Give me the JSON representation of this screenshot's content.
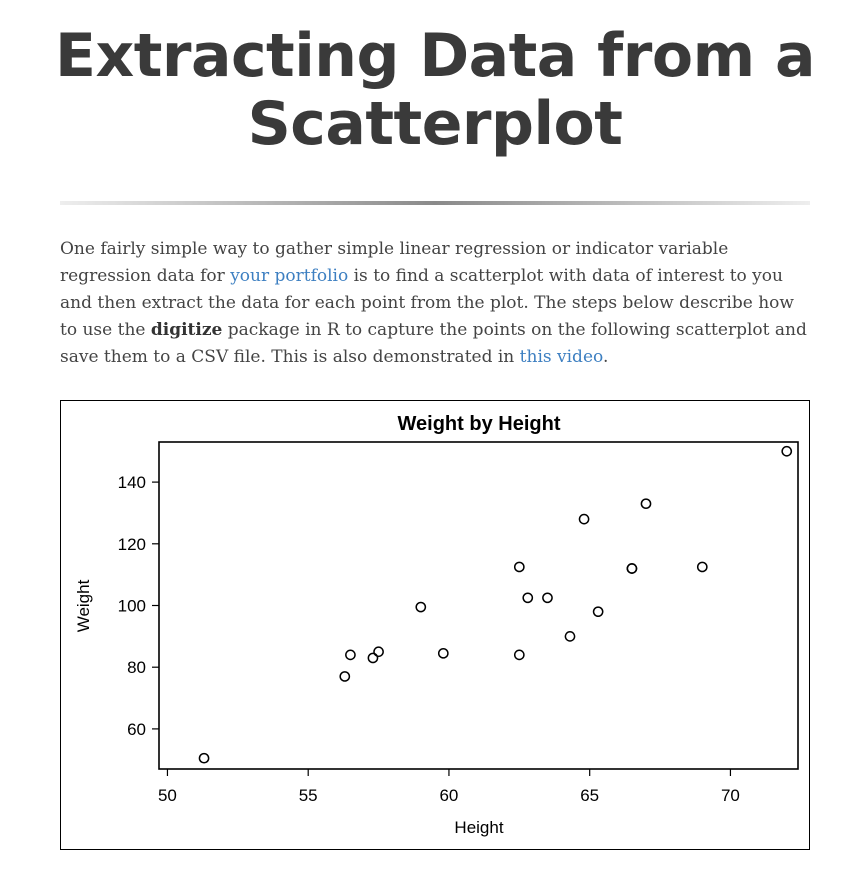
{
  "page": {
    "heading": "Extracting Data from a Scatterplot",
    "intro": {
      "part1": "One fairly simple way to gather simple linear regression or indicator variable regression data for ",
      "link1": "your portfolio",
      "part2": " is to find a scatterplot with data of interest to you and then extract the data for each point from the plot. The steps below describe how to use the ",
      "bold": "digitize",
      "part3": " package in R to capture the points on the following scatterplot and save them to a CSV file. This is also demonstrated in ",
      "link2": "this video",
      "part4": "."
    },
    "link_color": "#3d7fc1"
  },
  "chart_data": {
    "type": "scatter",
    "title": "Weight by Height",
    "xlabel": "Height",
    "ylabel": "Weight",
    "xlim": [
      49.7,
      72.4
    ],
    "ylim": [
      47,
      153
    ],
    "xticks": [
      50,
      55,
      60,
      65,
      70
    ],
    "yticks": [
      60,
      80,
      100,
      120,
      140
    ],
    "marker": "open-circle",
    "grid": false,
    "points": [
      {
        "x": 51.3,
        "y": 50.5
      },
      {
        "x": 56.3,
        "y": 77
      },
      {
        "x": 56.5,
        "y": 84
      },
      {
        "x": 57.3,
        "y": 83
      },
      {
        "x": 57.5,
        "y": 85
      },
      {
        "x": 59.0,
        "y": 99.5
      },
      {
        "x": 59.8,
        "y": 84.5
      },
      {
        "x": 62.5,
        "y": 112.5
      },
      {
        "x": 62.5,
        "y": 84
      },
      {
        "x": 62.8,
        "y": 102.5
      },
      {
        "x": 63.5,
        "y": 102.5
      },
      {
        "x": 64.3,
        "y": 90
      },
      {
        "x": 64.8,
        "y": 128
      },
      {
        "x": 65.3,
        "y": 98
      },
      {
        "x": 66.5,
        "y": 112
      },
      {
        "x": 66.5,
        "y": 112
      },
      {
        "x": 67.0,
        "y": 133
      },
      {
        "x": 69.0,
        "y": 112.5
      },
      {
        "x": 72.0,
        "y": 150
      }
    ]
  }
}
